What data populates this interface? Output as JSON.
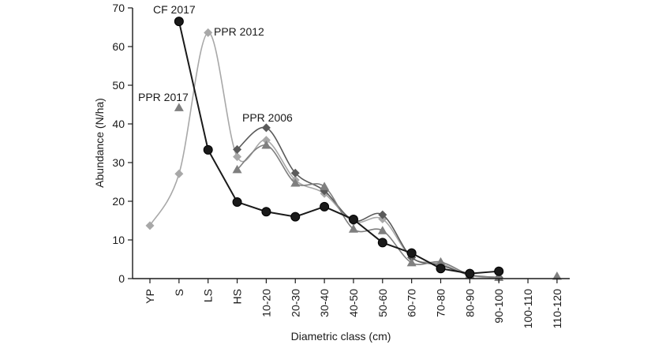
{
  "chart_data": {
    "type": "line",
    "title": "",
    "xlabel": "Diametric class (cm)",
    "ylabel": "Abundance (N/ha)",
    "ylim": [
      0,
      70
    ],
    "yticks": [
      0,
      10,
      20,
      30,
      40,
      50,
      60,
      70
    ],
    "grid": false,
    "categories": [
      "YP",
      "S",
      "LS",
      "HS",
      "10-20",
      "20-30",
      "30-40",
      "40-50",
      "50-60",
      "60-70",
      "70-80",
      "80-90",
      "90-100",
      "100-110",
      "110-120"
    ],
    "series": [
      {
        "name": "CF 2017",
        "marker": "circle",
        "color": "#1a1a1a",
        "smooth": false,
        "values": [
          null,
          66.5,
          33.3,
          19.8,
          17.3,
          16.0,
          18.6,
          15.3,
          9.3,
          6.6,
          2.6,
          1.3,
          1.9,
          null,
          null
        ]
      },
      {
        "name": "PPR 2012",
        "marker": "diamond",
        "color": "#a8a8a8",
        "smooth": true,
        "values": [
          13.7,
          27.1,
          63.6,
          31.5,
          35.8,
          25.5,
          22.0,
          14.7,
          15.4,
          5.4,
          3.9,
          0.8,
          0.2,
          null,
          null
        ]
      },
      {
        "name": "PPR 2006",
        "marker": "diamond",
        "color": "#5a5a5a",
        "smooth": true,
        "values": [
          null,
          null,
          null,
          33.4,
          39.0,
          27.3,
          22.7,
          15.0,
          16.5,
          5.5,
          3.5,
          1.0,
          0.3,
          null,
          null
        ]
      },
      {
        "name": "PPR 2017",
        "marker": "triangle",
        "color": "#7f7f7f",
        "smooth": true,
        "values": [
          null,
          44.2,
          null,
          28.2,
          34.5,
          24.7,
          23.8,
          12.8,
          12.4,
          4.1,
          4.3,
          1.0,
          0.3,
          null,
          0.6
        ]
      }
    ],
    "annotations": [
      {
        "text": "CF 2017"
      },
      {
        "text": "PPR 2012"
      },
      {
        "text": "PPR 2017"
      },
      {
        "text": "PPR 2006"
      }
    ]
  }
}
